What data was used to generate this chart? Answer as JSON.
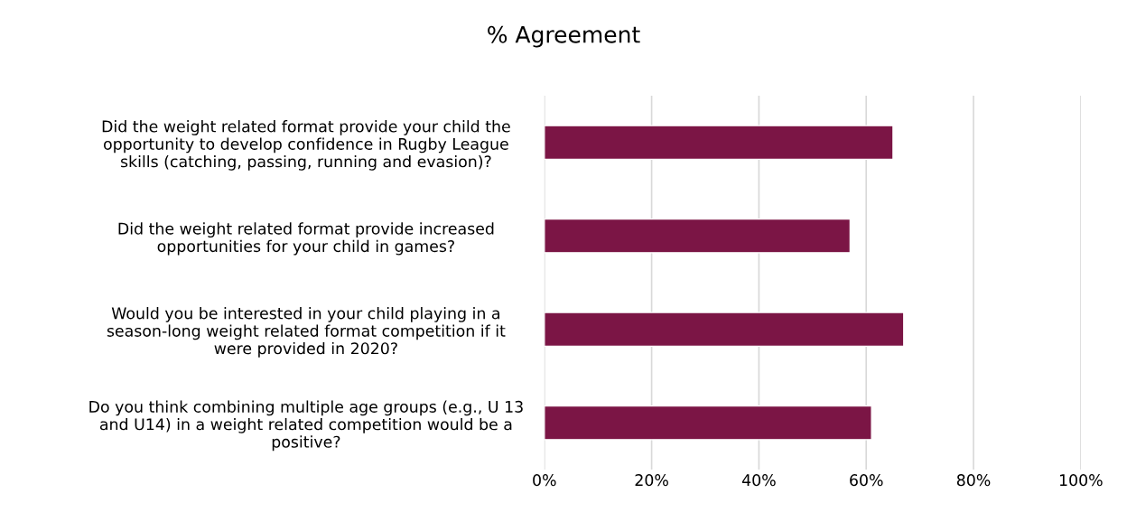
{
  "chart_data": {
    "type": "bar",
    "title": "% Agreement",
    "orientation": "horizontal",
    "categories": [
      "Did the weight related format provide your child the\nopportunity to develop confidence in Rugby League\nskills (catching, passing, running and evasion)?",
      "Did the weight related format provide increased\nopportunities for your child in games?",
      "Would you be interested in your child playing in a\nseason-long weight related format competition if it\nwere provided in 2020?",
      "Do you think combining multiple age groups (e.g., U 13\nand U14) in a weight related competition would be a\npositive?"
    ],
    "values": [
      65,
      57,
      67,
      61
    ],
    "color": "#7b1545",
    "xlim": [
      0,
      100
    ],
    "xticks": [
      {
        "value": 0,
        "label": "0%"
      },
      {
        "value": 20,
        "label": "20%"
      },
      {
        "value": 40,
        "label": "40%"
      },
      {
        "value": 60,
        "label": "60%"
      },
      {
        "value": 80,
        "label": "80%"
      },
      {
        "value": 100,
        "label": "100%"
      }
    ],
    "grid": "x"
  }
}
